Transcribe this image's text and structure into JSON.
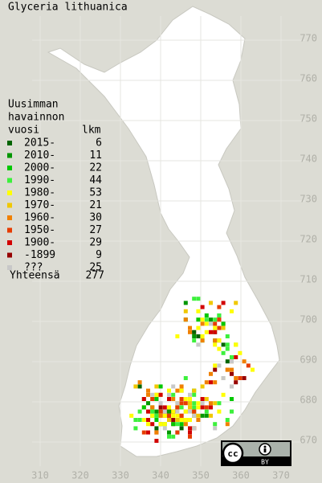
{
  "title": "Glyceria lithuanica",
  "legend": {
    "heading": [
      "Uusimman",
      "havainnon",
      "vuosi"
    ],
    "count_header": "lkm",
    "entries": [
      {
        "label": "2015-",
        "count": 6,
        "color": "#006400"
      },
      {
        "label": "2010-",
        "count": 11,
        "color": "#009600"
      },
      {
        "label": "2000-",
        "count": 22,
        "color": "#00c800"
      },
      {
        "label": "1990-",
        "count": 44,
        "color": "#3cf03c"
      },
      {
        "label": "1980-",
        "count": 53,
        "color": "#ffff00"
      },
      {
        "label": "1970-",
        "count": 21,
        "color": "#f0c800"
      },
      {
        "label": "1960-",
        "count": 30,
        "color": "#f08000"
      },
      {
        "label": "1950-",
        "count": 27,
        "color": "#e63c00"
      },
      {
        "label": "1900-",
        "count": 29,
        "color": "#d20000"
      },
      {
        "label": "-1899",
        "count": 9,
        "color": "#960000"
      },
      {
        "label": "???",
        "count": 25,
        "color": "#c8c8c8"
      }
    ],
    "total_label": "Yhteensä",
    "total": 277
  },
  "grid": {
    "x_labels": [
      310,
      320,
      330,
      340,
      350,
      360,
      370
    ],
    "y_labels": [
      670,
      680,
      690,
      700,
      710,
      720,
      730,
      740,
      750,
      760,
      770
    ]
  },
  "badge": {
    "label": "BY"
  }
}
